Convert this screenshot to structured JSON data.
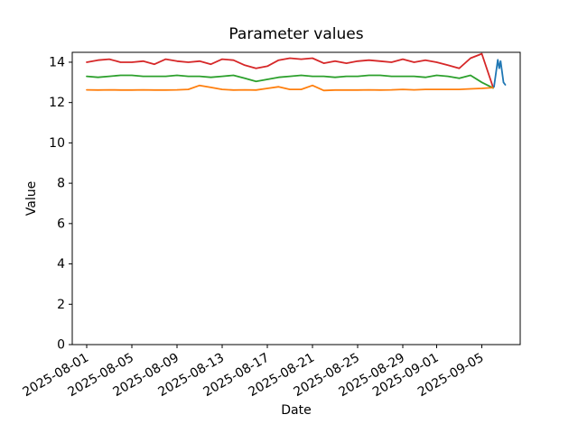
{
  "chart_data": {
    "type": "line",
    "title": "Parameter values",
    "xlabel": "Date",
    "ylabel": "Value",
    "ylim": [
      0,
      14.49
    ],
    "y_ticks": [
      0,
      2,
      4,
      6,
      8,
      10,
      12,
      14
    ],
    "x_tick_labels": [
      "2025-08-01",
      "2025-08-05",
      "2025-08-09",
      "2025-08-13",
      "2025-08-17",
      "2025-08-21",
      "2025-08-25",
      "2025-08-29",
      "2025-09-01",
      "2025-09-05"
    ],
    "x_tick_rotation_deg": 30,
    "grid": false,
    "legend": false,
    "categories_dates": [
      "2025-08-01",
      "2025-08-02",
      "2025-08-03",
      "2025-08-04",
      "2025-08-05",
      "2025-08-06",
      "2025-08-07",
      "2025-08-08",
      "2025-08-09",
      "2025-08-10",
      "2025-08-11",
      "2025-08-12",
      "2025-08-13",
      "2025-08-14",
      "2025-08-15",
      "2025-08-16",
      "2025-08-17",
      "2025-08-18",
      "2025-08-19",
      "2025-08-20",
      "2025-08-21",
      "2025-08-22",
      "2025-08-23",
      "2025-08-24",
      "2025-08-25",
      "2025-08-26",
      "2025-08-27",
      "2025-08-28",
      "2025-08-29",
      "2025-08-30",
      "2025-08-31",
      "2025-09-01",
      "2025-09-02",
      "2025-09-03",
      "2025-09-04",
      "2025-09-05",
      "2025-09-06"
    ],
    "series": [
      {
        "name": "red-line",
        "color": "#d62728",
        "values": [
          14.0,
          14.1,
          14.15,
          14.0,
          14.0,
          14.05,
          13.9,
          14.15,
          14.05,
          14.0,
          14.05,
          13.9,
          14.15,
          14.1,
          13.85,
          13.7,
          13.8,
          14.1,
          14.2,
          14.15,
          14.2,
          13.95,
          14.05,
          13.95,
          14.05,
          14.1,
          14.05,
          14.0,
          14.15,
          14.0,
          14.1,
          14.0,
          13.85,
          13.7,
          14.2,
          14.42,
          12.75
        ]
      },
      {
        "name": "green-line",
        "color": "#2ca02c",
        "values": [
          13.3,
          13.25,
          13.3,
          13.35,
          13.35,
          13.3,
          13.3,
          13.3,
          13.35,
          13.3,
          13.3,
          13.25,
          13.3,
          13.35,
          13.2,
          13.05,
          13.15,
          13.25,
          13.3,
          13.35,
          13.3,
          13.3,
          13.25,
          13.3,
          13.3,
          13.35,
          13.35,
          13.3,
          13.3,
          13.3,
          13.25,
          13.35,
          13.3,
          13.2,
          13.35,
          13.0,
          12.72
        ]
      },
      {
        "name": "orange-line",
        "color": "#ff7f0e",
        "values": [
          12.63,
          12.62,
          12.63,
          12.62,
          12.62,
          12.63,
          12.62,
          12.62,
          12.63,
          12.65,
          12.85,
          12.75,
          12.65,
          12.62,
          12.63,
          12.62,
          12.7,
          12.78,
          12.65,
          12.65,
          12.85,
          12.6,
          12.62,
          12.62,
          12.62,
          12.63,
          12.62,
          12.63,
          12.65,
          12.63,
          12.65,
          12.65,
          12.65,
          12.65,
          12.68,
          12.7,
          12.74
        ]
      },
      {
        "name": "blue-spike-line",
        "color": "#1f77b4",
        "dates": [
          "2025-09-06 02:00",
          "2025-09-06 10:00",
          "2025-09-06 13:00",
          "2025-09-06 16:00",
          "2025-09-06 22:00",
          "2025-09-07 02:00"
        ],
        "values": [
          12.78,
          14.12,
          13.7,
          14.05,
          13.0,
          12.88
        ]
      }
    ]
  }
}
